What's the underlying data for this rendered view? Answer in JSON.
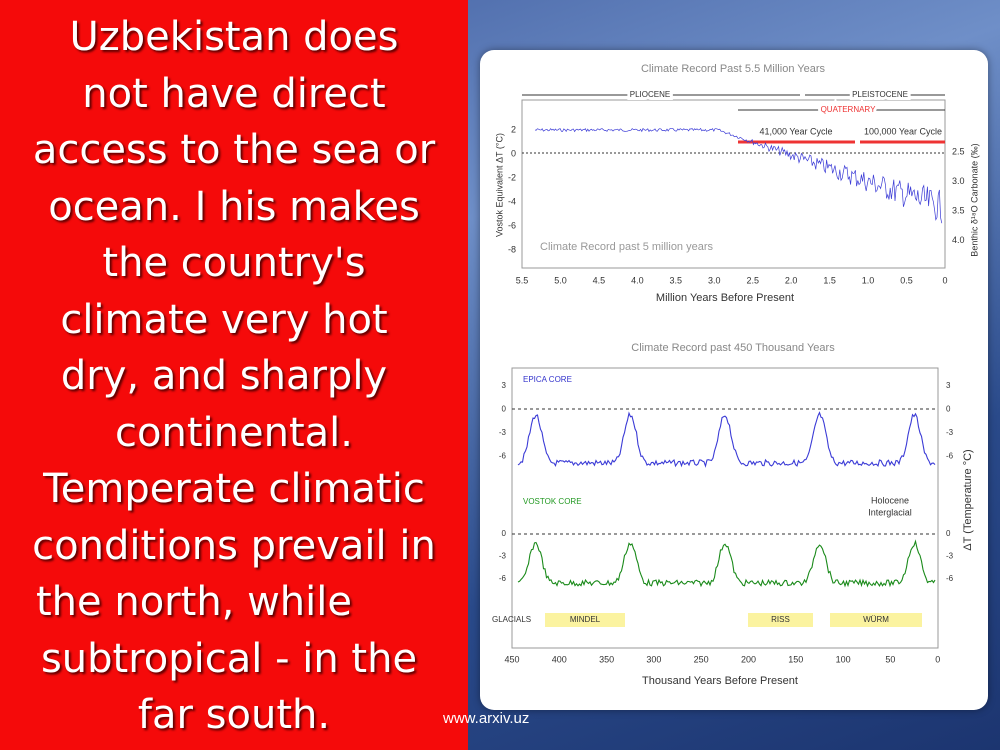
{
  "slide": {
    "text_lines": [
      "Uzbekistan does",
      "not have direct",
      "access to the sea or",
      "ocean. I his makes",
      "the country's",
      "climate very hot",
      "dry, and sharply",
      "continental.",
      "Temperate climatic",
      "conditions prevail in",
      "the north, while",
      "subtropical - in the",
      "far south."
    ],
    "footer": "www.arxiv.uz"
  },
  "figure": {
    "top": {
      "title": "Climate Record Past 5.5 Million Years",
      "periods": [
        "PLIOCENE",
        "PLEISTOCENE",
        "QUATERNARY"
      ],
      "cycles": [
        "41,000 Year Cycle",
        "100,000 Year Cycle"
      ],
      "inner_label": "Climate Record past 5 million years",
      "y_label": "Vostok Equivalent ΔT (°C)",
      "y2_label": "Benthic δ¹⁸O Carbonate (‰)",
      "x_label": "Million Years Before Present",
      "xticks": [
        "5.5",
        "5.0",
        "4.5",
        "4.0",
        "3.5",
        "3.0",
        "2.5",
        "2.0",
        "1.5",
        "1.0",
        "0.5",
        "0"
      ],
      "yticks": [
        "2",
        "0",
        "-2",
        "-4",
        "-6",
        "-8"
      ],
      "y2ticks": [
        "2.5",
        "3.0",
        "3.5",
        "4.0"
      ]
    },
    "bottom": {
      "title": "Climate Record past 450 Thousand Years",
      "epica": "EPICA CORE",
      "vostok": "VOSTOK CORE",
      "holocene": [
        "Holocene",
        "Interglacial"
      ],
      "y_label": "ΔT (Temperature °C)",
      "glacials_label": "GLACIALS",
      "glacials": [
        "MINDEL",
        "RISS",
        "WÜRM"
      ],
      "epica_ticks": [
        "3",
        "0",
        "-3",
        "-6"
      ],
      "vostok_ticks": [
        "0",
        "-3",
        "-6"
      ],
      "xticks": [
        "450",
        "400",
        "350",
        "300",
        "250",
        "200",
        "150",
        "100",
        "50",
        "0"
      ],
      "x_label": "Thousand Years Before Present"
    }
  }
}
